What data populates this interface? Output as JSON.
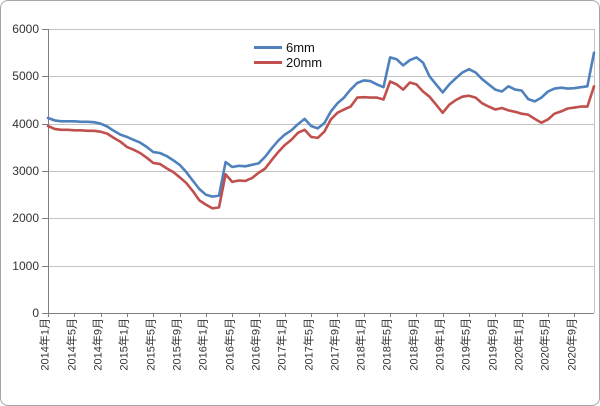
{
  "colors": {
    "background": "#ffffff",
    "frame_border": "#a6a6a6",
    "grid": "#c3c3c3",
    "axis": "#7f7f7f",
    "text": "#333333",
    "series_blue": "#4F81BD",
    "series_red": "#C0504D"
  },
  "chart_data": {
    "type": "line",
    "title": "",
    "xlabel": "",
    "ylabel": "",
    "grid": "horizontal",
    "legend_position": "top-center",
    "ylim": [
      0,
      6000
    ],
    "y_ticks": [
      0,
      1000,
      2000,
      3000,
      4000,
      5000,
      6000
    ],
    "x_tick_every": 4,
    "x_tick_labels": [
      "2014年1月",
      "2014年5月",
      "2014年9月",
      "2015年1月",
      "2015年5月",
      "2015年9月",
      "2016年1月",
      "2016年5月",
      "2016年9月",
      "2017年1月",
      "2017年5月",
      "2017年9月",
      "2018年1月",
      "2018年5月",
      "2018年9月",
      "2019年1月",
      "2019年5月",
      "2019年9月",
      "2020年1月",
      "2020年5月",
      "2020年9月"
    ],
    "x_start": "2014年1月",
    "x_freq": "monthly",
    "series": [
      {
        "name": "6mm",
        "color": "#4F81BD",
        "values": [
          4120,
          4070,
          4050,
          4050,
          4050,
          4040,
          4040,
          4030,
          4000,
          3940,
          3850,
          3770,
          3720,
          3660,
          3600,
          3510,
          3400,
          3380,
          3320,
          3230,
          3130,
          2980,
          2800,
          2620,
          2500,
          2460,
          2480,
          3190,
          3085,
          3110,
          3100,
          3130,
          3160,
          3300,
          3480,
          3640,
          3770,
          3860,
          3990,
          4100,
          3950,
          3900,
          4010,
          4260,
          4430,
          4550,
          4720,
          4860,
          4915,
          4900,
          4830,
          4770,
          5400,
          5360,
          5230,
          5340,
          5400,
          5290,
          5000,
          4830,
          4660,
          4830,
          4960,
          5080,
          5150,
          5080,
          4940,
          4830,
          4720,
          4680,
          4790,
          4720,
          4700,
          4520,
          4470,
          4550,
          4680,
          4740,
          4760,
          4740,
          4750,
          4770,
          4790,
          5500
        ]
      },
      {
        "name": "20mm",
        "color": "#C0504D",
        "values": [
          3950,
          3890,
          3870,
          3870,
          3860,
          3860,
          3850,
          3850,
          3830,
          3790,
          3700,
          3620,
          3510,
          3450,
          3380,
          3280,
          3170,
          3150,
          3060,
          2980,
          2870,
          2750,
          2580,
          2380,
          2290,
          2210,
          2230,
          2930,
          2770,
          2800,
          2790,
          2850,
          2960,
          3050,
          3230,
          3400,
          3550,
          3660,
          3810,
          3870,
          3720,
          3700,
          3830,
          4090,
          4230,
          4300,
          4360,
          4550,
          4560,
          4550,
          4550,
          4510,
          4890,
          4830,
          4720,
          4870,
          4830,
          4680,
          4570,
          4400,
          4230,
          4400,
          4500,
          4570,
          4590,
          4550,
          4430,
          4360,
          4300,
          4330,
          4280,
          4250,
          4210,
          4190,
          4100,
          4020,
          4090,
          4210,
          4260,
          4320,
          4340,
          4360,
          4360,
          4790
        ]
      }
    ]
  }
}
